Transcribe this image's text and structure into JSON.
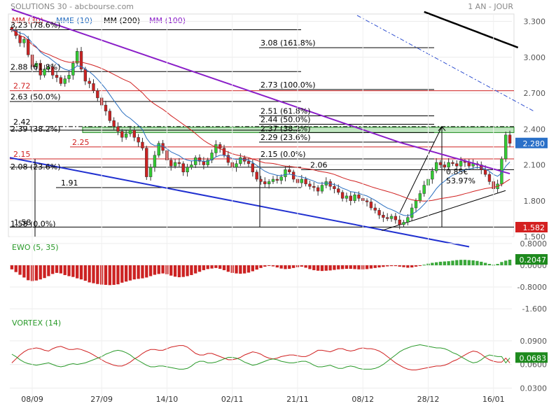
{
  "header": {
    "title": "SOLUTIONS 30 - abcbourse.com",
    "period": "1 AN - JOUR",
    "legend": [
      {
        "label": "MM (30)",
        "color": "#d02020"
      },
      {
        "label": "MME (10)",
        "color": "#2a6fc0"
      },
      {
        "label": "MM (200)",
        "color": "#000000"
      },
      {
        "label": "MM (100)",
        "color": "#8a1ec8"
      }
    ]
  },
  "x_labels": [
    "08/09",
    "27/09",
    "14/10",
    "02/11",
    "21/11",
    "08/12",
    "28/12",
    "16/01"
  ],
  "chart_data": [
    {
      "type": "candlestick",
      "panel": "price",
      "ylim": [
        1.5,
        3.35
      ],
      "yticks": [
        "3.300",
        "3.000",
        "2.700",
        "2.400",
        "2.100",
        "1.800",
        "1.500"
      ],
      "last_value_label": "2.280",
      "low_value_label": "1.582",
      "closes": [
        3.23,
        3.18,
        3.12,
        3.15,
        3.02,
        2.92,
        2.95,
        2.85,
        2.9,
        2.92,
        2.85,
        2.83,
        2.78,
        2.82,
        2.85,
        2.95,
        3.05,
        2.9,
        2.8,
        2.78,
        2.72,
        2.66,
        2.6,
        2.55,
        2.47,
        2.42,
        2.38,
        2.33,
        2.36,
        2.39,
        2.33,
        2.29,
        2.24,
        2.0,
        2.08,
        2.18,
        2.28,
        2.22,
        2.14,
        2.09,
        2.12,
        2.11,
        2.04,
        2.08,
        2.1,
        2.16,
        2.13,
        2.1,
        2.14,
        2.2,
        2.27,
        2.24,
        2.18,
        2.12,
        2.08,
        2.11,
        2.16,
        2.13,
        2.11,
        2.04,
        1.98,
        1.96,
        1.94,
        1.96,
        1.98,
        1.97,
        2.0,
        2.06,
        2.04,
        1.98,
        1.95,
        1.98,
        1.94,
        1.92,
        1.91,
        1.88,
        1.93,
        1.96,
        1.92,
        1.9,
        1.87,
        1.82,
        1.84,
        1.8,
        1.85,
        1.82,
        1.8,
        1.79,
        1.74,
        1.72,
        1.68,
        1.66,
        1.65,
        1.67,
        1.64,
        1.6,
        1.62,
        1.66,
        1.74,
        1.8,
        1.86,
        1.93,
        1.98,
        2.05,
        2.12,
        2.1,
        2.08,
        2.12,
        2.11,
        2.09,
        2.13,
        2.12,
        2.09,
        2.11,
        2.1,
        2.06,
        2.02,
        1.96,
        1.9,
        1.94,
        2.15,
        2.35,
        2.28
      ],
      "lines": [
        {
          "label": "3.23 (78.6%)",
          "value": 3.23
        },
        {
          "label": "3.08 (161.8%)",
          "value": 3.08
        },
        {
          "label": "2.88 (61.8%)",
          "value": 2.88
        },
        {
          "label": "2.72",
          "value": 2.72
        },
        {
          "label": "2.73 (100.0%)",
          "value": 2.73
        },
        {
          "label": "2.63 (50.0%)",
          "value": 2.63
        },
        {
          "label": "2.51 (61.8%)",
          "value": 2.51
        },
        {
          "label": "2.44 (50.0%)",
          "value": 2.44
        },
        {
          "label": "2.42",
          "value": 2.42
        },
        {
          "label": "2.37 (38.2%)",
          "value": 2.37
        },
        {
          "label": "2.39 (38.2%)",
          "value": 2.39
        },
        {
          "label": "2.29 (23.6%)",
          "value": 2.29
        },
        {
          "label": "2.25",
          "value": 2.25
        },
        {
          "label": "2.15",
          "value": 2.15
        },
        {
          "label": "2.15 (0.0%)",
          "value": 2.15
        },
        {
          "label": "2.08 (23.6%)",
          "value": 2.08
        },
        {
          "label": "2.06",
          "value": 2.06
        },
        {
          "label": "1.91",
          "value": 1.91
        },
        {
          "label": "1.58",
          "value": 1.58
        },
        {
          "label": "1.58 (0.0%)",
          "value": 1.58
        }
      ],
      "annotations": [
        "0.85€",
        "53.97%"
      ]
    },
    {
      "type": "bar",
      "panel": "ewo",
      "title": "EWO (5, 35)",
      "ylim": [
        -1.7,
        0.9
      ],
      "yticks": [
        "0.8000",
        "0.0000",
        "-0.8000",
        "-1.600"
      ],
      "last_value_label": "0.2047",
      "values": [
        -0.15,
        -0.25,
        -0.35,
        -0.45,
        -0.55,
        -0.58,
        -0.56,
        -0.52,
        -0.47,
        -0.4,
        -0.32,
        -0.28,
        -0.3,
        -0.36,
        -0.4,
        -0.43,
        -0.48,
        -0.52,
        -0.57,
        -0.63,
        -0.66,
        -0.69,
        -0.71,
        -0.72,
        -0.73,
        -0.72,
        -0.7,
        -0.64,
        -0.6,
        -0.56,
        -0.52,
        -0.5,
        -0.48,
        -0.45,
        -0.4,
        -0.35,
        -0.32,
        -0.3,
        -0.33,
        -0.38,
        -0.42,
        -0.44,
        -0.43,
        -0.4,
        -0.36,
        -0.3,
        -0.24,
        -0.18,
        -0.14,
        -0.12,
        -0.1,
        -0.13,
        -0.18,
        -0.24,
        -0.28,
        -0.3,
        -0.31,
        -0.3,
        -0.27,
        -0.22,
        -0.16,
        -0.1,
        -0.05,
        -0.02,
        -0.04,
        -0.08,
        -0.12,
        -0.14,
        -0.13,
        -0.1,
        -0.07,
        -0.05,
        -0.09,
        -0.14,
        -0.18,
        -0.2,
        -0.21,
        -0.2,
        -0.19,
        -0.17,
        -0.15,
        -0.14,
        -0.13,
        -0.13,
        -0.14,
        -0.15,
        -0.15,
        -0.14,
        -0.12,
        -0.1,
        -0.08,
        -0.06,
        -0.04,
        -0.03,
        -0.03,
        -0.05,
        -0.07,
        -0.09,
        -0.08,
        -0.05,
        -0.01,
        0.02,
        0.06,
        0.09,
        0.11,
        0.13,
        0.14,
        0.15,
        0.17,
        0.19,
        0.2,
        0.2,
        0.19,
        0.18,
        0.16,
        0.13,
        0.09,
        0.05,
        0.02,
        0.05,
        0.12,
        0.17,
        0.2047
      ]
    },
    {
      "type": "line",
      "panel": "vortex",
      "title": "VORTEX (14)",
      "ylim": [
        0.025,
        0.105
      ],
      "yticks": [
        "0.0900",
        "0.0600",
        "0.0300"
      ],
      "last_value_label": "0.0683",
      "series": [
        {
          "color": "#d02020",
          "values": [
            0.062,
            0.067,
            0.072,
            0.076,
            0.079,
            0.08,
            0.081,
            0.08,
            0.078,
            0.077,
            0.08,
            0.082,
            0.083,
            0.081,
            0.079,
            0.079,
            0.08,
            0.079,
            0.077,
            0.075,
            0.072,
            0.069,
            0.066,
            0.063,
            0.061,
            0.059,
            0.058,
            0.058,
            0.06,
            0.063,
            0.067,
            0.07,
            0.074,
            0.077,
            0.079,
            0.079,
            0.078,
            0.078,
            0.08,
            0.082,
            0.083,
            0.084,
            0.084,
            0.082,
            0.078,
            0.074,
            0.072,
            0.072,
            0.074,
            0.074,
            0.072,
            0.07,
            0.068,
            0.066,
            0.066,
            0.067,
            0.069,
            0.072,
            0.074,
            0.076,
            0.075,
            0.073,
            0.07,
            0.068,
            0.067,
            0.068,
            0.07,
            0.071,
            0.072,
            0.072,
            0.071,
            0.07,
            0.07,
            0.072,
            0.075,
            0.078,
            0.078,
            0.077,
            0.076,
            0.078,
            0.08,
            0.08,
            0.078,
            0.077,
            0.078,
            0.08,
            0.081,
            0.08,
            0.08,
            0.079,
            0.077,
            0.074,
            0.07,
            0.066,
            0.062,
            0.059,
            0.056,
            0.054,
            0.053,
            0.053,
            0.054,
            0.055,
            0.056,
            0.057,
            0.058,
            0.058,
            0.059,
            0.061,
            0.064,
            0.066,
            0.069,
            0.072,
            0.075,
            0.077,
            0.076,
            0.073,
            0.069,
            0.066,
            0.064,
            0.063,
            0.063,
            0.068,
            0.062
          ]
        },
        {
          "color": "#2a9a2a",
          "values": [
            0.073,
            0.07,
            0.066,
            0.063,
            0.061,
            0.06,
            0.059,
            0.06,
            0.061,
            0.062,
            0.06,
            0.058,
            0.057,
            0.058,
            0.06,
            0.061,
            0.06,
            0.061,
            0.062,
            0.064,
            0.066,
            0.068,
            0.07,
            0.073,
            0.075,
            0.077,
            0.078,
            0.077,
            0.075,
            0.072,
            0.068,
            0.065,
            0.062,
            0.059,
            0.057,
            0.057,
            0.058,
            0.058,
            0.057,
            0.056,
            0.055,
            0.054,
            0.054,
            0.055,
            0.058,
            0.062,
            0.064,
            0.064,
            0.062,
            0.062,
            0.063,
            0.065,
            0.067,
            0.069,
            0.069,
            0.068,
            0.066,
            0.063,
            0.061,
            0.059,
            0.06,
            0.062,
            0.064,
            0.066,
            0.067,
            0.066,
            0.064,
            0.063,
            0.062,
            0.062,
            0.063,
            0.064,
            0.064,
            0.062,
            0.059,
            0.057,
            0.057,
            0.058,
            0.059,
            0.057,
            0.055,
            0.055,
            0.057,
            0.058,
            0.057,
            0.055,
            0.054,
            0.054,
            0.054,
            0.055,
            0.057,
            0.06,
            0.064,
            0.068,
            0.072,
            0.076,
            0.079,
            0.081,
            0.083,
            0.084,
            0.085,
            0.084,
            0.083,
            0.082,
            0.081,
            0.081,
            0.08,
            0.078,
            0.075,
            0.073,
            0.07,
            0.067,
            0.064,
            0.062,
            0.063,
            0.066,
            0.07,
            0.072,
            0.071,
            0.07,
            0.07,
            0.062,
            0.0683
          ]
        }
      ]
    }
  ]
}
